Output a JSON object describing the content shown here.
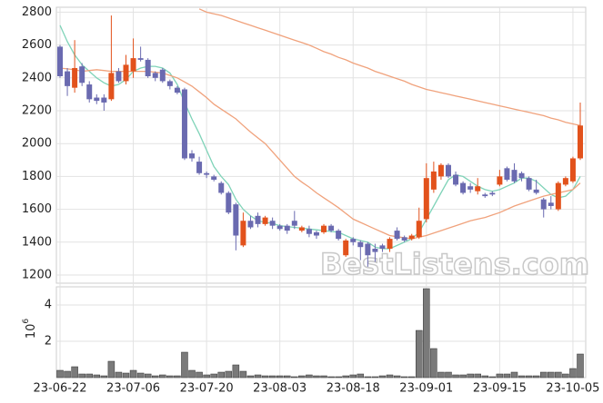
{
  "chart_data": {
    "type": "candlestick",
    "categories": [
      "23-06-22",
      null,
      null,
      null,
      null,
      null,
      null,
      null,
      null,
      null,
      "23-07-06",
      null,
      null,
      null,
      null,
      null,
      null,
      null,
      null,
      null,
      "23-07-20",
      null,
      null,
      null,
      null,
      null,
      null,
      null,
      null,
      null,
      "23-08-03",
      null,
      null,
      null,
      null,
      null,
      null,
      null,
      null,
      null,
      "23-08-18",
      null,
      null,
      null,
      null,
      null,
      null,
      null,
      null,
      null,
      "23-09-01",
      null,
      null,
      null,
      null,
      null,
      null,
      null,
      null,
      null,
      "23-09-15",
      null,
      null,
      null,
      null,
      null,
      null,
      null,
      null,
      null,
      "23-10-05",
      null
    ],
    "open": [
      2590,
      2440,
      2340,
      2470,
      2360,
      2280,
      2280,
      2270,
      2440,
      2380,
      2440,
      2520,
      2510,
      2430,
      2450,
      2380,
      2340,
      2330,
      1940,
      1890,
      1820,
      1800,
      1760,
      1700,
      1630,
      1380,
      1530,
      1560,
      1510,
      1530,
      1500,
      1500,
      1530,
      1470,
      1480,
      1460,
      1460,
      1500,
      1470,
      1320,
      1420,
      1400,
      1390,
      1360,
      1380,
      1360,
      1470,
      1430,
      1420,
      1430,
      1540,
      1720,
      1800,
      1870,
      1810,
      1760,
      1740,
      1710,
      1690,
      1700,
      1750,
      1850,
      1840,
      1820,
      1790,
      1720,
      1660,
      1640,
      1600,
      1750,
      1770,
      1910
    ],
    "high": [
      2600,
      2460,
      2630,
      2490,
      2380,
      2300,
      2300,
      2780,
      2460,
      2540,
      2640,
      2590,
      2520,
      2440,
      2460,
      2390,
      2350,
      2340,
      1960,
      1920,
      1830,
      1810,
      1770,
      1710,
      1640,
      1580,
      1560,
      1580,
      1560,
      1550,
      1510,
      1510,
      1590,
      1500,
      1500,
      1470,
      1510,
      1510,
      1480,
      1420,
      1430,
      1410,
      1400,
      1390,
      1390,
      1430,
      1490,
      1440,
      1450,
      1610,
      1880,
      1890,
      1880,
      1880,
      1830,
      1770,
      1760,
      1790,
      1700,
      1710,
      1840,
      1860,
      1880,
      1830,
      1800,
      1780,
      1670,
      1680,
      1770,
      1800,
      1920,
      2250
    ],
    "low": [
      2400,
      2290,
      2310,
      2350,
      2250,
      2240,
      2200,
      2260,
      2370,
      2360,
      2400,
      2500,
      2400,
      2380,
      2370,
      2330,
      2300,
      1900,
      1890,
      1810,
      1790,
      1770,
      1690,
      1570,
      1350,
      1370,
      1480,
      1490,
      1500,
      1480,
      1470,
      1450,
      1480,
      1460,
      1430,
      1420,
      1450,
      1460,
      1410,
      1310,
      1380,
      1290,
      1250,
      1280,
      1340,
      1340,
      1410,
      1400,
      1410,
      1420,
      1520,
      1700,
      1780,
      1790,
      1740,
      1690,
      1700,
      1690,
      1670,
      1680,
      1740,
      1770,
      1760,
      1770,
      1710,
      1690,
      1550,
      1600,
      1590,
      1740,
      1760,
      1900
    ],
    "close": [
      2410,
      2350,
      2460,
      2370,
      2270,
      2260,
      2250,
      2430,
      2380,
      2480,
      2520,
      2510,
      2410,
      2400,
      2380,
      2350,
      2310,
      1910,
      1910,
      1820,
      1810,
      1780,
      1700,
      1580,
      1440,
      1530,
      1490,
      1510,
      1550,
      1500,
      1480,
      1470,
      1500,
      1490,
      1450,
      1440,
      1500,
      1470,
      1420,
      1410,
      1400,
      1370,
      1320,
      1340,
      1360,
      1420,
      1420,
      1410,
      1440,
      1530,
      1790,
      1830,
      1870,
      1800,
      1750,
      1700,
      1720,
      1740,
      1680,
      1690,
      1800,
      1780,
      1770,
      1790,
      1720,
      1700,
      1600,
      1620,
      1760,
      1790,
      1910,
      2110
    ],
    "up_color": "#e2521c",
    "down_color": "#6a6ab0",
    "ylim": [
      1150,
      2830
    ],
    "yticks": [
      1200,
      1400,
      1600,
      1800,
      2000,
      2200,
      2400,
      2600,
      2800
    ],
    "moving_averages": [
      {
        "color": "#7fd3b8",
        "values": [
          2720,
          2620,
          2540,
          2480,
          2440,
          2400,
          2370,
          2350,
          2360,
          2390,
          2440,
          2460,
          2470,
          2470,
          2460,
          2430,
          2360,
          2250,
          2150,
          2060,
          1960,
          1860,
          1800,
          1750,
          1660,
          1600,
          1560,
          1530,
          1520,
          1515,
          1500,
          1495,
          1490,
          1485,
          1480,
          1475,
          1470,
          1465,
          1460,
          1440,
          1420,
          1410,
          1400,
          1370,
          1360,
          1360,
          1380,
          1400,
          1420,
          1460,
          1540,
          1620,
          1700,
          1780,
          1810,
          1800,
          1770,
          1740,
          1720,
          1710,
          1720,
          1740,
          1760,
          1790,
          1790,
          1770,
          1730,
          1690,
          1670,
          1680,
          1720,
          1800
        ]
      },
      {
        "color": "#f0a27c",
        "values": [
          2460,
          2455,
          2450,
          2440,
          2445,
          2450,
          2445,
          2440,
          2440,
          2440,
          2440,
          2440,
          2440,
          2435,
          2430,
          2415,
          2400,
          2375,
          2350,
          2315,
          2280,
          2240,
          2210,
          2180,
          2150,
          2110,
          2070,
          2035,
          2000,
          1950,
          1900,
          1850,
          1800,
          1765,
          1735,
          1700,
          1670,
          1640,
          1610,
          1575,
          1540,
          1520,
          1500,
          1480,
          1460,
          1440,
          1433,
          1427,
          1420,
          1430,
          1440,
          1455,
          1470,
          1485,
          1500,
          1515,
          1530,
          1540,
          1550,
          1565,
          1580,
          1600,
          1620,
          1635,
          1650,
          1665,
          1680,
          1690,
          1700,
          1710,
          1720,
          1760
        ]
      },
      {
        "color": "#f0a27c",
        "values": [
          null,
          null,
          null,
          null,
          null,
          null,
          null,
          null,
          null,
          null,
          null,
          null,
          null,
          null,
          null,
          null,
          null,
          null,
          null,
          2820,
          2800,
          2790,
          2780,
          2765,
          2750,
          2735,
          2720,
          2705,
          2690,
          2675,
          2660,
          2645,
          2630,
          2615,
          2600,
          2580,
          2560,
          2545,
          2525,
          2510,
          2490,
          2475,
          2460,
          2440,
          2425,
          2410,
          2395,
          2380,
          2360,
          2345,
          2330,
          2320,
          2310,
          2300,
          2290,
          2280,
          2270,
          2260,
          2250,
          2240,
          2230,
          2220,
          2210,
          2200,
          2190,
          2180,
          2170,
          2155,
          2145,
          2130,
          2120,
          2110
        ]
      }
    ],
    "volume": {
      "color": "#7a7a7a",
      "ylim": [
        0,
        5
      ],
      "yticks": [
        2,
        4
      ],
      "offset_label": {
        "base": "10",
        "exponent": "6"
      },
      "values": [
        0.4,
        0.35,
        0.6,
        0.2,
        0.2,
        0.15,
        0.1,
        0.9,
        0.3,
        0.25,
        0.4,
        0.25,
        0.2,
        0.1,
        0.15,
        0.1,
        0.1,
        1.4,
        0.4,
        0.3,
        0.15,
        0.2,
        0.3,
        0.35,
        0.7,
        0.35,
        0.1,
        0.15,
        0.1,
        0.1,
        0.1,
        0.1,
        0.05,
        0.1,
        0.15,
        0.1,
        0.1,
        0.05,
        0.05,
        0.1,
        0.15,
        0.2,
        0.05,
        0.05,
        0.1,
        0.15,
        0.1,
        0.05,
        0.05,
        2.6,
        4.9,
        1.6,
        0.3,
        0.3,
        0.15,
        0.15,
        0.2,
        0.2,
        0.1,
        0.05,
        0.2,
        0.2,
        0.3,
        0.1,
        0.1,
        0.1,
        0.3,
        0.3,
        0.3,
        0.2,
        0.5,
        1.3
      ]
    },
    "grid": true,
    "watermark": "BestListens.com"
  }
}
